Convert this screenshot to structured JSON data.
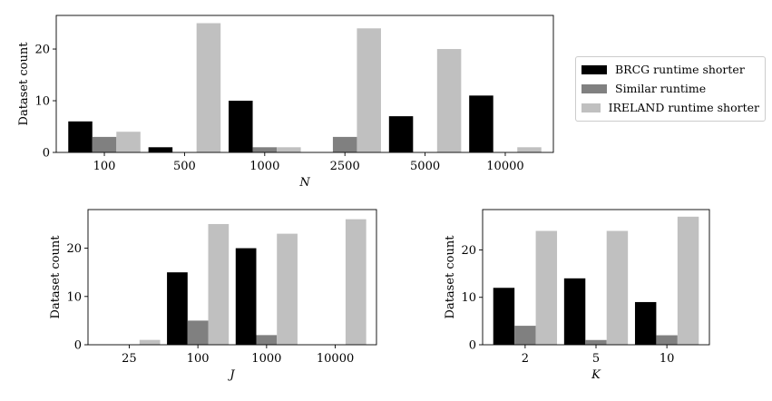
{
  "legend": {
    "entries": [
      {
        "name": "BRCG runtime shorter",
        "color": "#000000"
      },
      {
        "name": "Similar runtime",
        "color": "#808080"
      },
      {
        "name": "IRELAND runtime shorter",
        "color": "#c0c0c0"
      }
    ]
  },
  "chart_data": [
    {
      "type": "bar",
      "xlabel": "N",
      "ylabel": "Dataset count",
      "categories": [
        "100",
        "500",
        "1000",
        "2500",
        "5000",
        "10000"
      ],
      "ylim": [
        0,
        26.5
      ],
      "yticks": [
        0,
        10,
        20
      ],
      "series": [
        {
          "name": "BRCG runtime shorter",
          "values": [
            6,
            1,
            10,
            0,
            7,
            11
          ]
        },
        {
          "name": "Similar runtime",
          "values": [
            3,
            0,
            1,
            3,
            0,
            0
          ]
        },
        {
          "name": "IRELAND runtime shorter",
          "values": [
            4,
            25,
            1,
            24,
            20,
            1
          ]
        }
      ]
    },
    {
      "type": "bar",
      "xlabel": "J",
      "ylabel": "Dataset count",
      "categories": [
        "25",
        "100",
        "1000",
        "10000"
      ],
      "ylim": [
        0,
        28
      ],
      "yticks": [
        0,
        10,
        20
      ],
      "series": [
        {
          "name": "BRCG runtime shorter",
          "values": [
            0,
            15,
            20,
            0
          ]
        },
        {
          "name": "Similar runtime",
          "values": [
            0,
            5,
            2,
            0
          ]
        },
        {
          "name": "IRELAND runtime shorter",
          "values": [
            1,
            25,
            23,
            26
          ]
        }
      ]
    },
    {
      "type": "bar",
      "xlabel": "K",
      "ylabel": "Dataset count",
      "categories": [
        "2",
        "5",
        "10"
      ],
      "ylim": [
        0,
        28.5
      ],
      "yticks": [
        0,
        10,
        20
      ],
      "series": [
        {
          "name": "BRCG runtime shorter",
          "values": [
            12,
            14,
            9
          ]
        },
        {
          "name": "Similar runtime",
          "values": [
            4,
            1,
            2
          ]
        },
        {
          "name": "IRELAND runtime shorter",
          "values": [
            24,
            24,
            27
          ]
        }
      ]
    }
  ]
}
